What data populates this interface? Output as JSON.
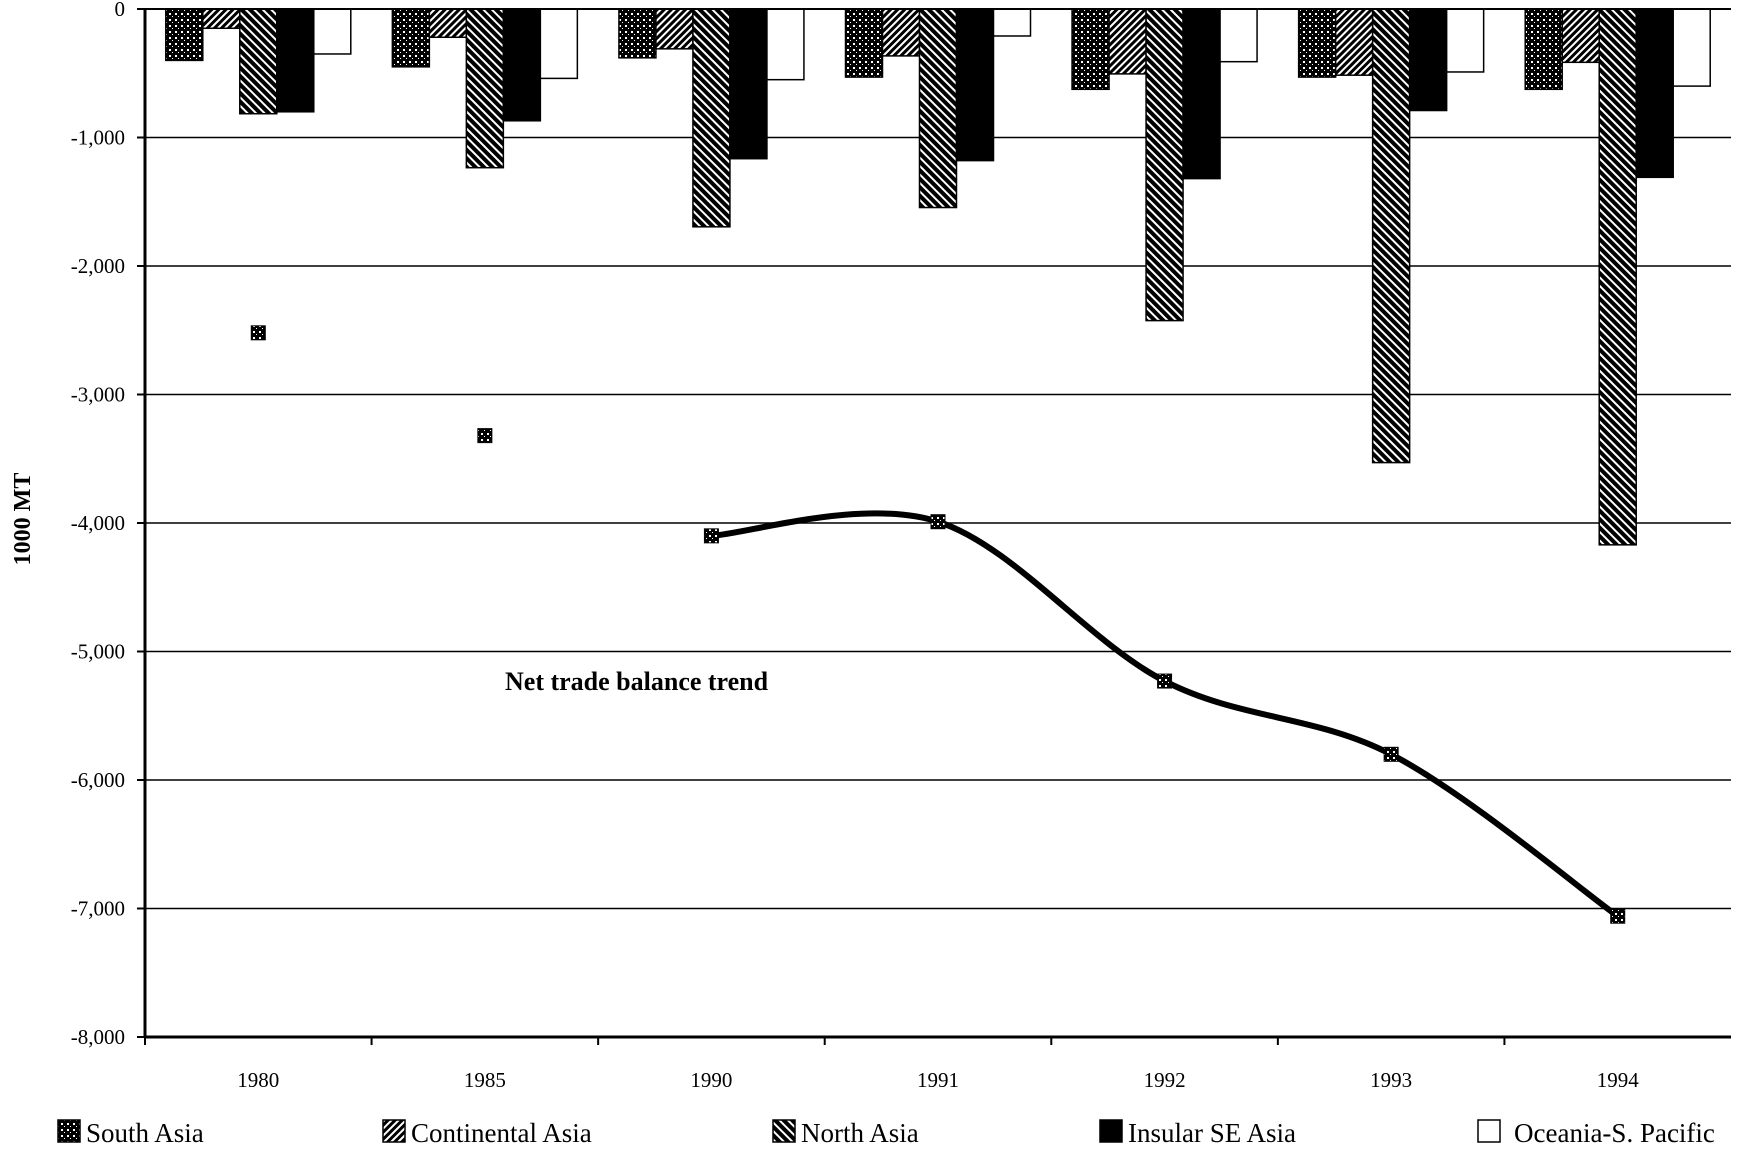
{
  "chart_data": {
    "type": "bar",
    "title": "",
    "xlabel": "",
    "ylabel": "1000 MT",
    "ylim": [
      -8000,
      0
    ],
    "yticks": [
      0,
      -1000,
      -2000,
      -3000,
      -4000,
      -5000,
      -6000,
      -7000,
      -8000
    ],
    "ytick_labels": [
      "0",
      "-1,000",
      "-2,000",
      "-3,000",
      "-4,000",
      "-5,000",
      "-6,000",
      "-7,000",
      "-8,000"
    ],
    "grid": "horizontal",
    "legend_position": "bottom",
    "categories": [
      "1980",
      "1985",
      "1990",
      "1991",
      "1992",
      "1993",
      "1994"
    ],
    "series": [
      {
        "name": "South Asia",
        "pattern": "crosshatch",
        "values": [
          -400,
          -450,
          -380,
          -530,
          -625,
          -530,
          -625
        ]
      },
      {
        "name": "Continental Asia",
        "pattern": "dense-diagonal",
        "values": [
          -150,
          -220,
          -310,
          -365,
          -505,
          -515,
          -415
        ]
      },
      {
        "name": "North Asia",
        "pattern": "diagonal",
        "values": [
          -815,
          -1235,
          -1695,
          -1545,
          -2425,
          -3530,
          -4170
        ]
      },
      {
        "name": "Insular SE Asia",
        "pattern": "solid-black",
        "values": [
          -800,
          -870,
          -1165,
          -1180,
          -1320,
          -790,
          -1310
        ]
      },
      {
        "name": "Oceania-S. Pacific",
        "pattern": "white",
        "values": [
          -350,
          -540,
          -550,
          -210,
          -410,
          -490,
          -600
        ]
      }
    ],
    "trend": {
      "type": "line",
      "annotation": "Net trade balance trend",
      "values": [
        -2520,
        -3320,
        -4100,
        -3990,
        -5230,
        -5800,
        -7060
      ],
      "line_from_category": "1990"
    }
  }
}
